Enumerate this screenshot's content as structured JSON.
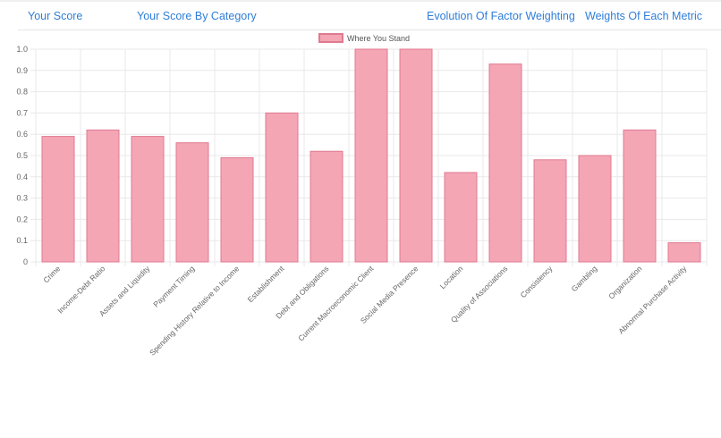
{
  "nav": {
    "your_score": "Your Score",
    "score_by_category": "Your Score By Category",
    "factor_evolution": "Evolution Of Factor Weighting",
    "metric_weights": "Weights Of Each Metric"
  },
  "chart_data": {
    "type": "bar",
    "categories": [
      "Crime",
      "Income-Debt Ratio",
      "Assets and Liquidity",
      "Payment Timing",
      "Spending History Relative to Income",
      "Establishment",
      "Debt and Obligations",
      "Current Macroeconomic Client",
      "Social Media Presence",
      "Location",
      "Quality of Associations",
      "Consistency",
      "Gambling",
      "Organization",
      "Abnormal Purchase Activity"
    ],
    "series": [
      {
        "name": "Where You Stand",
        "values": [
          0.59,
          0.62,
          0.59,
          0.56,
          0.49,
          0.7,
          0.52,
          1.0,
          1.0,
          0.42,
          0.93,
          0.48,
          0.5,
          0.62,
          0.09
        ]
      }
    ],
    "y_ticks": [
      "0",
      "0.1",
      "0.2",
      "0.3",
      "0.4",
      "0.5",
      "0.6",
      "0.7",
      "0.8",
      "0.9",
      "1.0"
    ],
    "ylim": [
      0,
      1.0
    ],
    "grid": true,
    "legend_position": "top-center",
    "colors": {
      "bar_fill": "#f4a6b5",
      "bar_border": "#e07a90",
      "grid": "#e8e8e8",
      "axis_text": "#666666",
      "nav_link": "#2f7ed8"
    }
  }
}
